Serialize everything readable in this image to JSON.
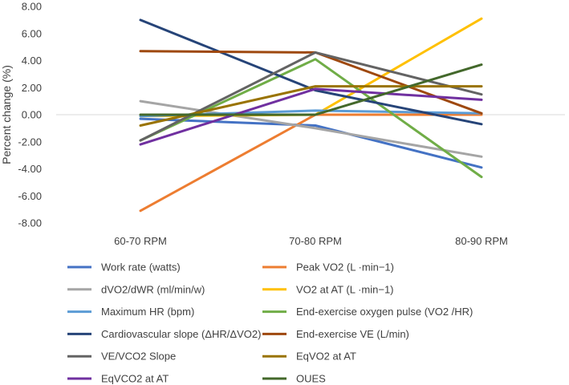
{
  "chart_data": {
    "type": "line",
    "title": "",
    "xlabel": "",
    "ylabel": "Percent change (%)",
    "ylim": [
      -8,
      8
    ],
    "ytick_step": 2,
    "ytick_labels": [
      "-8.00",
      "-6.00",
      "-4.00",
      "-2.00",
      "0.00",
      "2.00",
      "4.00",
      "6.00",
      "8.00"
    ],
    "categories": [
      "60-70 RPM",
      "70-80 RPM",
      "80-90 RPM"
    ],
    "grid": false,
    "legend_position": "bottom",
    "series": [
      {
        "name": "Work rate (watts)",
        "color": "#4472C4",
        "values": [
          -0.3,
          -0.8,
          -3.9
        ]
      },
      {
        "name": "Peak VO2 (L ·min−1)",
        "color": "#ED7D31",
        "values": [
          -7.1,
          0.0,
          0.0
        ]
      },
      {
        "name": "dVO2/dWR (ml/min/w)",
        "color": "#A5A5A5",
        "values": [
          1.0,
          -1.0,
          -3.1
        ]
      },
      {
        "name": "VO2 at AT (L ·min−1)",
        "color": "#FFC000",
        "values": [
          -0.1,
          0.0,
          7.1
        ]
      },
      {
        "name": "Maximum HR (bpm)",
        "color": "#5B9BD5",
        "values": [
          -0.1,
          0.3,
          0.1
        ]
      },
      {
        "name": "End-exercise oxygen pulse (VO2 /HR)",
        "color": "#70AD47",
        "values": [
          -1.9,
          4.1,
          -4.6
        ]
      },
      {
        "name": "Cardiovascular slope (ΔHR/ΔVO2)",
        "color": "#264478",
        "values": [
          7.0,
          1.8,
          -0.7
        ]
      },
      {
        "name": "End-exercise VE (L/min)",
        "color": "#9E480E",
        "values": [
          4.7,
          4.6,
          0.1
        ]
      },
      {
        "name": "VE/VCO2 Slope",
        "color": "#636363",
        "values": [
          -1.9,
          4.6,
          1.5
        ]
      },
      {
        "name": "EqVO2 at AT",
        "color": "#997300",
        "values": [
          -0.8,
          2.1,
          2.1
        ]
      },
      {
        "name": "EqVCO2 at AT",
        "color": "#7030A0",
        "values": [
          -2.2,
          1.9,
          1.1
        ]
      },
      {
        "name": "OUES",
        "color": "#43682B",
        "values": [
          0.0,
          0.0,
          3.7
        ]
      }
    ]
  }
}
